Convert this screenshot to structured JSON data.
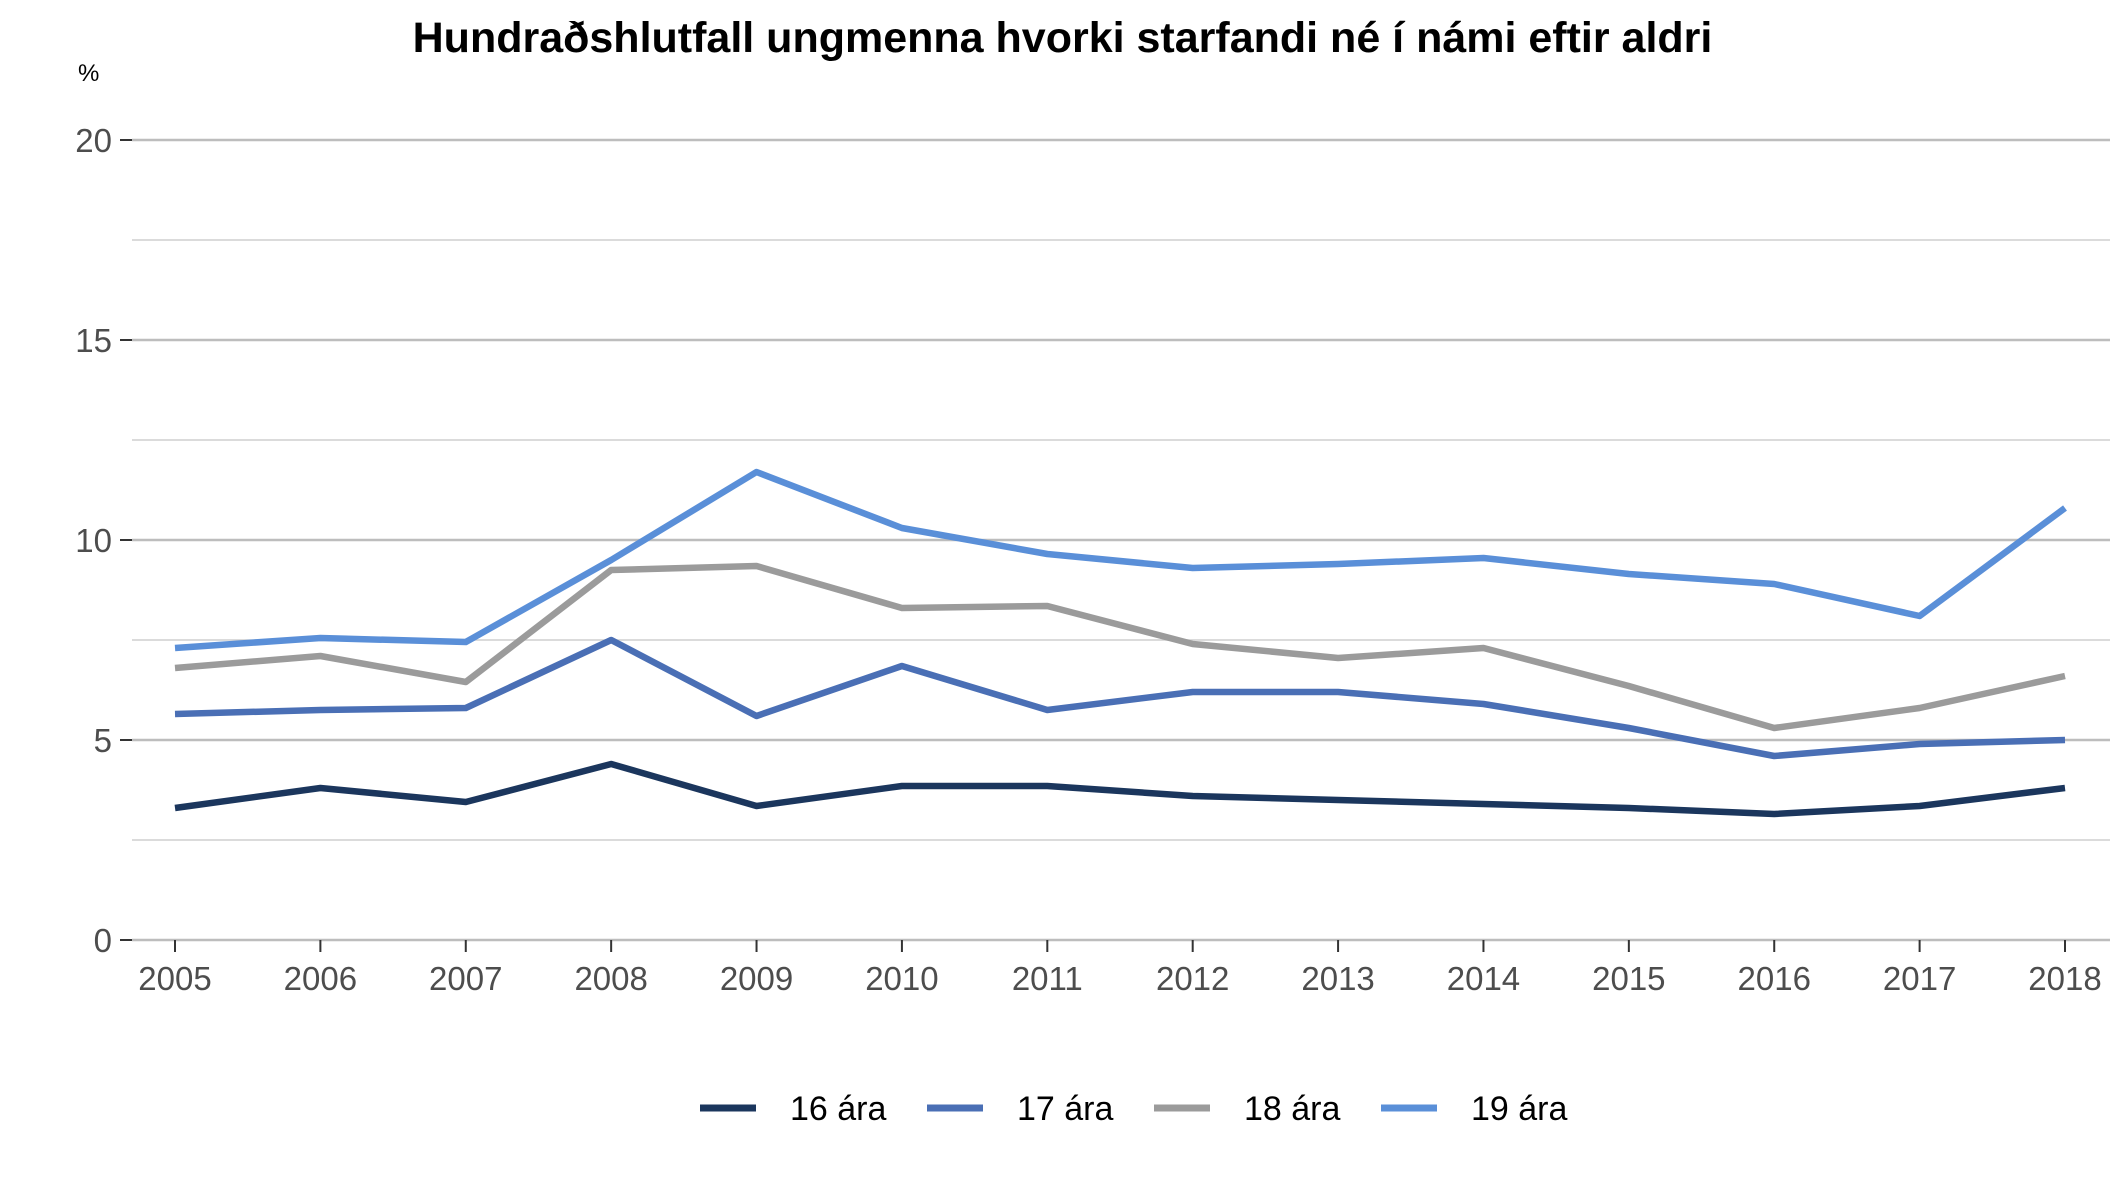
{
  "chart_data": {
    "type": "line",
    "title": "Hundraðshlutfall ungmenna hvorki starfandi né í námi eftir aldri",
    "ylabel": "%",
    "xlabel": "",
    "ylim": [
      0,
      20
    ],
    "yticks": [
      0,
      5,
      10,
      15,
      20
    ],
    "grid": true,
    "legend_position": "bottom",
    "x": [
      "2005",
      "2006",
      "2007",
      "2008",
      "2009",
      "2010",
      "2011",
      "2012",
      "2013",
      "2014",
      "2015",
      "2016",
      "2017",
      "2018"
    ],
    "series": [
      {
        "name": "16 ára",
        "color": "#1b365d",
        "values": [
          3.3,
          3.8,
          3.45,
          4.4,
          3.35,
          3.85,
          3.85,
          3.6,
          3.5,
          3.4,
          3.3,
          3.15,
          3.35,
          3.8
        ]
      },
      {
        "name": "17 ára",
        "color": "#4a6fb5",
        "values": [
          5.65,
          5.75,
          5.8,
          7.5,
          5.6,
          6.85,
          5.75,
          6.2,
          6.2,
          5.9,
          5.3,
          4.6,
          4.9,
          5.0
        ]
      },
      {
        "name": "18 ára",
        "color": "#9b9b9b",
        "values": [
          6.8,
          7.1,
          6.45,
          9.25,
          9.35,
          8.3,
          8.35,
          7.4,
          7.05,
          7.3,
          6.35,
          5.3,
          5.8,
          6.6
        ]
      },
      {
        "name": "19 ára",
        "color": "#5a8fd8",
        "values": [
          7.3,
          7.55,
          7.45,
          9.5,
          11.7,
          10.3,
          9.65,
          9.3,
          9.4,
          9.55,
          9.15,
          8.9,
          8.1,
          10.8
        ]
      }
    ]
  }
}
